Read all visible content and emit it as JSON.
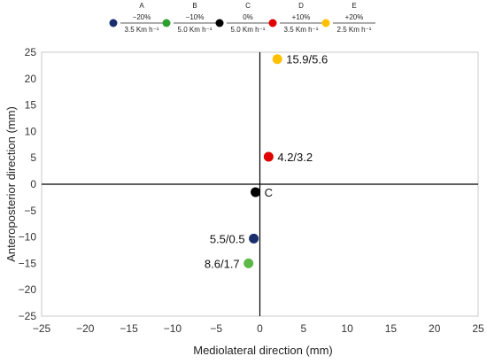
{
  "chart_data": {
    "type": "scatter",
    "title": "",
    "xlabel": "Mediolateral direction (mm)",
    "ylabel": "Anteroposterior direction (mm)",
    "xlim": [
      -25,
      25
    ],
    "ylim": [
      -25,
      25
    ],
    "x_ticks": [
      -25,
      -20,
      -15,
      -10,
      -5,
      0,
      5,
      10,
      15,
      20,
      25
    ],
    "y_ticks": [
      -25,
      -20,
      -15,
      -10,
      -5,
      0,
      5,
      10,
      15,
      20,
      25
    ],
    "grid": false,
    "legend_position": "top",
    "legend": [
      {
        "letter": "A",
        "top": "−20%",
        "bottom": "3.5 Km h⁻¹",
        "color": "#1a2e6e"
      },
      {
        "letter": "B",
        "top": "−10%",
        "bottom": "5.0 Km h⁻¹",
        "color": "#2ca02c"
      },
      {
        "letter": "C",
        "top": "0%",
        "bottom": "5.0 Km h⁻¹",
        "color": "#000000"
      },
      {
        "letter": "D",
        "top": "+10%",
        "bottom": "3.5 Km h⁻¹",
        "color": "#e00000"
      },
      {
        "letter": "E",
        "top": "+20%",
        "bottom": "2.5 Km h⁻¹",
        "color": "#ffc000"
      }
    ],
    "series": [
      {
        "legend_key": "A",
        "x": -0.7,
        "y": -10.3,
        "label": "5.5/0.5",
        "label_side": "left",
        "color": "#1a2e6e"
      },
      {
        "legend_key": "B",
        "x": -1.3,
        "y": -15.0,
        "label": "8.6/1.7",
        "label_side": "left",
        "color": "#5cb947"
      },
      {
        "legend_key": "C",
        "x": -0.5,
        "y": -1.5,
        "label": "C",
        "label_side": "right",
        "color": "#000000"
      },
      {
        "legend_key": "D",
        "x": 1.0,
        "y": 5.2,
        "label": "4.2/3.2",
        "label_side": "right",
        "color": "#e00000"
      },
      {
        "legend_key": "E",
        "x": 2.0,
        "y": 23.7,
        "label": "15.9/5.6",
        "label_side": "right",
        "color": "#ffc000"
      }
    ]
  }
}
